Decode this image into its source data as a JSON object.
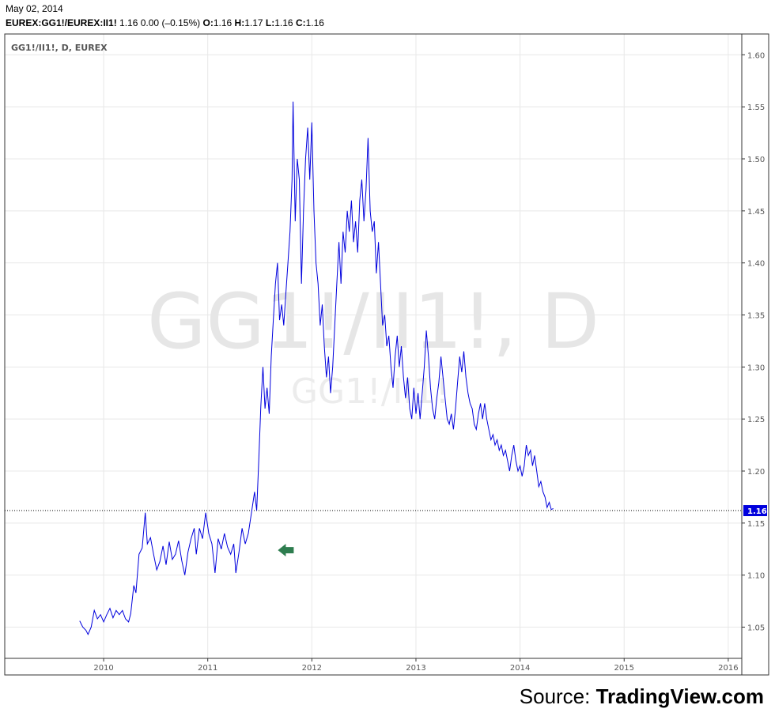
{
  "header": {
    "date": "May 02, 2014",
    "symbol": "EUREX:GG1!/EUREX:II1!",
    "last": "1.16",
    "change": "0.00",
    "change_pct": "(–0.15%)",
    "o_label": "O:",
    "o_value": "1.16",
    "h_label": "H:",
    "h_value": "1.17",
    "l_label": "L:",
    "l_value": "1.16",
    "c_label": "C:",
    "c_value": "1.16"
  },
  "panel_label": "GG1!/II1!, D, EUREX",
  "watermark": {
    "main": "GG1!/II1!, D",
    "sub": "GG1!/II1!"
  },
  "source": {
    "prefix": "Source: ",
    "brand": "TradingView.com"
  },
  "colors": {
    "line": "#0000dd",
    "last_price_bg": "#0000dd",
    "arrow": "#2e7d4f",
    "grid": "#e8e8e8"
  },
  "chart_data": {
    "type": "line",
    "x_ticks": [
      "2010",
      "2011",
      "2012",
      "2013",
      "2014",
      "2015",
      "2016"
    ],
    "y_ticks": [
      "1.05",
      "1.10",
      "1.15",
      "1.20",
      "1.25",
      "1.30",
      "1.35",
      "1.40",
      "1.45",
      "1.50",
      "1.55",
      "1.60"
    ],
    "ylim": [
      1.02,
      1.62
    ],
    "xlim": [
      2009.05,
      2016.13
    ],
    "last_price_label": "1.16",
    "last_price": 1.162,
    "annotation_arrow": {
      "x": 2011.75,
      "y": 1.124,
      "icon": "left-arrow-icon"
    },
    "series": [
      {
        "values": [
          [
            2009.77,
            1.056
          ],
          [
            2009.8,
            1.05
          ],
          [
            2009.83,
            1.047
          ],
          [
            2009.85,
            1.043
          ],
          [
            2009.88,
            1.05
          ],
          [
            2009.91,
            1.066
          ],
          [
            2009.94,
            1.058
          ],
          [
            2009.97,
            1.062
          ],
          [
            2010.0,
            1.055
          ],
          [
            2010.03,
            1.062
          ],
          [
            2010.06,
            1.068
          ],
          [
            2010.09,
            1.059
          ],
          [
            2010.12,
            1.066
          ],
          [
            2010.15,
            1.062
          ],
          [
            2010.18,
            1.066
          ],
          [
            2010.21,
            1.058
          ],
          [
            2010.24,
            1.055
          ],
          [
            2010.26,
            1.063
          ],
          [
            2010.29,
            1.09
          ],
          [
            2010.31,
            1.083
          ],
          [
            2010.34,
            1.12
          ],
          [
            2010.37,
            1.126
          ],
          [
            2010.4,
            1.16
          ],
          [
            2010.42,
            1.13
          ],
          [
            2010.45,
            1.136
          ],
          [
            2010.48,
            1.12
          ],
          [
            2010.51,
            1.105
          ],
          [
            2010.54,
            1.113
          ],
          [
            2010.57,
            1.128
          ],
          [
            2010.6,
            1.11
          ],
          [
            2010.63,
            1.132
          ],
          [
            2010.66,
            1.115
          ],
          [
            2010.69,
            1.12
          ],
          [
            2010.72,
            1.133
          ],
          [
            2010.75,
            1.114
          ],
          [
            2010.78,
            1.1
          ],
          [
            2010.81,
            1.122
          ],
          [
            2010.84,
            1.135
          ],
          [
            2010.87,
            1.145
          ],
          [
            2010.89,
            1.12
          ],
          [
            2010.92,
            1.145
          ],
          [
            2010.95,
            1.135
          ],
          [
            2010.98,
            1.16
          ],
          [
            2011.01,
            1.14
          ],
          [
            2011.04,
            1.13
          ],
          [
            2011.07,
            1.102
          ],
          [
            2011.1,
            1.135
          ],
          [
            2011.13,
            1.125
          ],
          [
            2011.16,
            1.14
          ],
          [
            2011.19,
            1.127
          ],
          [
            2011.22,
            1.12
          ],
          [
            2011.25,
            1.13
          ],
          [
            2011.27,
            1.102
          ],
          [
            2011.3,
            1.122
          ],
          [
            2011.33,
            1.145
          ],
          [
            2011.36,
            1.13
          ],
          [
            2011.39,
            1.14
          ],
          [
            2011.42,
            1.16
          ],
          [
            2011.45,
            1.18
          ],
          [
            2011.47,
            1.162
          ],
          [
            2011.49,
            1.21
          ],
          [
            2011.51,
            1.262
          ],
          [
            2011.53,
            1.3
          ],
          [
            2011.55,
            1.26
          ],
          [
            2011.57,
            1.28
          ],
          [
            2011.59,
            1.255
          ],
          [
            2011.61,
            1.31
          ],
          [
            2011.63,
            1.345
          ],
          [
            2011.65,
            1.38
          ],
          [
            2011.67,
            1.4
          ],
          [
            2011.69,
            1.345
          ],
          [
            2011.71,
            1.36
          ],
          [
            2011.73,
            1.34
          ],
          [
            2011.75,
            1.37
          ],
          [
            2011.77,
            1.4
          ],
          [
            2011.79,
            1.43
          ],
          [
            2011.81,
            1.48
          ],
          [
            2011.82,
            1.555
          ],
          [
            2011.84,
            1.44
          ],
          [
            2011.86,
            1.5
          ],
          [
            2011.88,
            1.48
          ],
          [
            2011.9,
            1.38
          ],
          [
            2011.92,
            1.45
          ],
          [
            2011.94,
            1.5
          ],
          [
            2011.96,
            1.53
          ],
          [
            2011.98,
            1.48
          ],
          [
            2012.0,
            1.535
          ],
          [
            2012.02,
            1.45
          ],
          [
            2012.04,
            1.4
          ],
          [
            2012.06,
            1.38
          ],
          [
            2012.08,
            1.34
          ],
          [
            2012.1,
            1.36
          ],
          [
            2012.12,
            1.32
          ],
          [
            2012.14,
            1.29
          ],
          [
            2012.16,
            1.31
          ],
          [
            2012.18,
            1.275
          ],
          [
            2012.2,
            1.3
          ],
          [
            2012.22,
            1.34
          ],
          [
            2012.24,
            1.38
          ],
          [
            2012.26,
            1.42
          ],
          [
            2012.28,
            1.38
          ],
          [
            2012.3,
            1.43
          ],
          [
            2012.32,
            1.41
          ],
          [
            2012.34,
            1.45
          ],
          [
            2012.36,
            1.43
          ],
          [
            2012.38,
            1.46
          ],
          [
            2012.4,
            1.42
          ],
          [
            2012.42,
            1.44
          ],
          [
            2012.44,
            1.41
          ],
          [
            2012.46,
            1.46
          ],
          [
            2012.48,
            1.48
          ],
          [
            2012.5,
            1.44
          ],
          [
            2012.52,
            1.47
          ],
          [
            2012.54,
            1.52
          ],
          [
            2012.56,
            1.45
          ],
          [
            2012.58,
            1.43
          ],
          [
            2012.6,
            1.44
          ],
          [
            2012.62,
            1.39
          ],
          [
            2012.64,
            1.42
          ],
          [
            2012.66,
            1.38
          ],
          [
            2012.68,
            1.34
          ],
          [
            2012.7,
            1.35
          ],
          [
            2012.72,
            1.32
          ],
          [
            2012.74,
            1.33
          ],
          [
            2012.76,
            1.3
          ],
          [
            2012.78,
            1.28
          ],
          [
            2012.8,
            1.31
          ],
          [
            2012.82,
            1.33
          ],
          [
            2012.84,
            1.3
          ],
          [
            2012.86,
            1.32
          ],
          [
            2012.88,
            1.29
          ],
          [
            2012.9,
            1.27
          ],
          [
            2012.92,
            1.29
          ],
          [
            2012.94,
            1.26
          ],
          [
            2012.96,
            1.25
          ],
          [
            2012.98,
            1.28
          ],
          [
            2013.0,
            1.255
          ],
          [
            2013.02,
            1.275
          ],
          [
            2013.04,
            1.25
          ],
          [
            2013.06,
            1.275
          ],
          [
            2013.08,
            1.3
          ],
          [
            2013.1,
            1.335
          ],
          [
            2013.12,
            1.31
          ],
          [
            2013.14,
            1.28
          ],
          [
            2013.16,
            1.26
          ],
          [
            2013.18,
            1.25
          ],
          [
            2013.2,
            1.27
          ],
          [
            2013.22,
            1.285
          ],
          [
            2013.24,
            1.31
          ],
          [
            2013.26,
            1.29
          ],
          [
            2013.28,
            1.27
          ],
          [
            2013.3,
            1.25
          ],
          [
            2013.32,
            1.245
          ],
          [
            2013.34,
            1.255
          ],
          [
            2013.36,
            1.24
          ],
          [
            2013.38,
            1.26
          ],
          [
            2013.4,
            1.285
          ],
          [
            2013.42,
            1.31
          ],
          [
            2013.44,
            1.295
          ],
          [
            2013.46,
            1.315
          ],
          [
            2013.48,
            1.29
          ],
          [
            2013.5,
            1.275
          ],
          [
            2013.52,
            1.265
          ],
          [
            2013.54,
            1.26
          ],
          [
            2013.56,
            1.245
          ],
          [
            2013.58,
            1.24
          ],
          [
            2013.6,
            1.255
          ],
          [
            2013.62,
            1.265
          ],
          [
            2013.64,
            1.25
          ],
          [
            2013.66,
            1.265
          ],
          [
            2013.68,
            1.25
          ],
          [
            2013.7,
            1.24
          ],
          [
            2013.72,
            1.23
          ],
          [
            2013.74,
            1.235
          ],
          [
            2013.76,
            1.225
          ],
          [
            2013.78,
            1.23
          ],
          [
            2013.8,
            1.22
          ],
          [
            2013.82,
            1.225
          ],
          [
            2013.84,
            1.215
          ],
          [
            2013.86,
            1.22
          ],
          [
            2013.88,
            1.21
          ],
          [
            2013.9,
            1.2
          ],
          [
            2013.92,
            1.215
          ],
          [
            2013.94,
            1.225
          ],
          [
            2013.96,
            1.21
          ],
          [
            2013.98,
            1.2
          ],
          [
            2014.0,
            1.205
          ],
          [
            2014.02,
            1.195
          ],
          [
            2014.04,
            1.205
          ],
          [
            2014.06,
            1.225
          ],
          [
            2014.08,
            1.215
          ],
          [
            2014.1,
            1.22
          ],
          [
            2014.12,
            1.205
          ],
          [
            2014.14,
            1.215
          ],
          [
            2014.16,
            1.2
          ],
          [
            2014.18,
            1.185
          ],
          [
            2014.2,
            1.19
          ],
          [
            2014.22,
            1.18
          ],
          [
            2014.24,
            1.175
          ],
          [
            2014.26,
            1.165
          ],
          [
            2014.28,
            1.17
          ],
          [
            2014.3,
            1.163
          ],
          [
            2014.32,
            1.164
          ]
        ]
      }
    ]
  }
}
